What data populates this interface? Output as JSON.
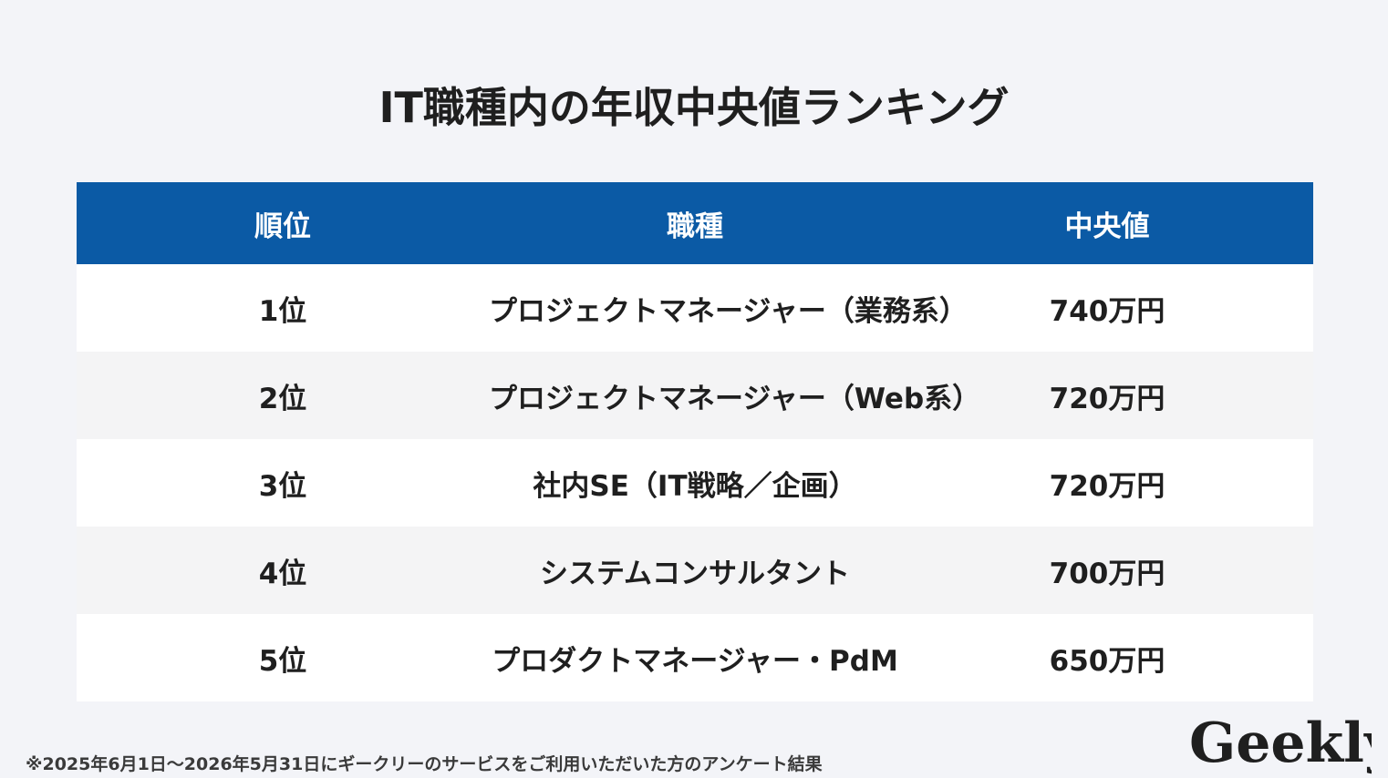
{
  "title": "IT職種内の年収中央値ランキング",
  "chart_data": {
    "type": "table",
    "columns": [
      "順位",
      "職種",
      "中央値"
    ],
    "rows": [
      {
        "rank": "1位",
        "job": "プロジェクトマネージャー（業務系）",
        "value": "740万円"
      },
      {
        "rank": "2位",
        "job": "プロジェクトマネージャー（Web系）",
        "value": "720万円"
      },
      {
        "rank": "3位",
        "job": "社内SE（IT戦略／企画）",
        "value": "720万円"
      },
      {
        "rank": "4位",
        "job": "システムコンサルタント",
        "value": "700万円"
      },
      {
        "rank": "5位",
        "job": "プロダクトマネージャー・PdM",
        "value": "650万円"
      }
    ]
  },
  "footnote": "※2025年6月1日〜2026年5月31日にギークリーのサービスをご利用いただいた方のアンケート結果",
  "logo": {
    "text": "Geekly"
  },
  "colors": {
    "header_bg": "#0b5aa5",
    "page_bg": "#f3f4f8",
    "row_alt": "#f4f4f5"
  }
}
